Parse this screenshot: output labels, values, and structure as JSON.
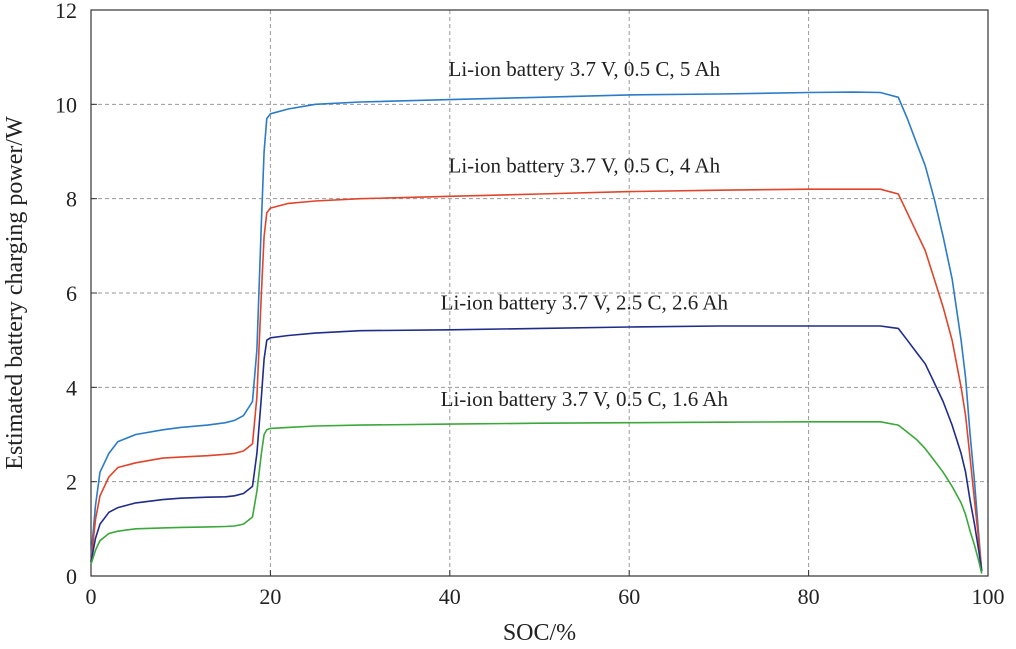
{
  "chart_data": {
    "type": "line",
    "xlabel": "SOC/%",
    "ylabel": "Estimated battery charging power/W",
    "xlim": [
      0,
      100
    ],
    "ylim": [
      0,
      12
    ],
    "xticks": [
      "0",
      "20",
      "40",
      "60",
      "80",
      "100"
    ],
    "yticks": [
      "0",
      "2",
      "4",
      "6",
      "8",
      "10",
      "12"
    ],
    "grid": true,
    "grid_style": "dashed",
    "series": [
      {
        "annotation": "Li-ion battery 3.7 V, 0.5 C, 5 Ah",
        "color": "#2b7bc8",
        "x": [
          0,
          0.5,
          1,
          2,
          3,
          5,
          8,
          10,
          13,
          15,
          16,
          17,
          18,
          18.5,
          19,
          19.3,
          19.6,
          20,
          22,
          25,
          30,
          40,
          50,
          60,
          70,
          80,
          85,
          88,
          90,
          91,
          92,
          93,
          94,
          95,
          96,
          97,
          97.5,
          98,
          98.5,
          99,
          99.3
        ],
        "y": [
          0.4,
          1.5,
          2.2,
          2.6,
          2.85,
          3.0,
          3.1,
          3.15,
          3.2,
          3.25,
          3.3,
          3.4,
          3.7,
          4.8,
          7.5,
          9.0,
          9.7,
          9.8,
          9.9,
          10.0,
          10.05,
          10.1,
          10.15,
          10.2,
          10.22,
          10.25,
          10.26,
          10.25,
          10.15,
          9.7,
          9.2,
          8.7,
          8.0,
          7.2,
          6.3,
          5.0,
          4.2,
          3.0,
          2.0,
          0.8,
          0.1
        ]
      },
      {
        "annotation": "Li-ion battery 3.7 V, 0.5 C, 4 Ah",
        "color": "#e0452b",
        "x": [
          0,
          0.5,
          1,
          2,
          3,
          5,
          8,
          10,
          13,
          15,
          16,
          17,
          18,
          18.5,
          19,
          19.3,
          19.6,
          20,
          22,
          25,
          30,
          40,
          50,
          60,
          70,
          80,
          85,
          88,
          90,
          91,
          92,
          93,
          94,
          95,
          96,
          97,
          97.5,
          98,
          98.5,
          99,
          99.3
        ],
        "y": [
          0.3,
          1.2,
          1.7,
          2.1,
          2.3,
          2.4,
          2.5,
          2.52,
          2.55,
          2.58,
          2.6,
          2.65,
          2.8,
          3.8,
          6.0,
          7.2,
          7.7,
          7.8,
          7.9,
          7.95,
          8.0,
          8.05,
          8.1,
          8.15,
          8.18,
          8.2,
          8.2,
          8.2,
          8.1,
          7.7,
          7.3,
          6.9,
          6.3,
          5.7,
          5.0,
          4.0,
          3.4,
          2.5,
          1.6,
          0.7,
          0.1
        ]
      },
      {
        "annotation": "Li-ion battery 3.7 V, 2.5 C, 2.6 Ah",
        "color": "#1f2d8a",
        "x": [
          0,
          0.5,
          1,
          2,
          3,
          5,
          8,
          10,
          13,
          15,
          16,
          17,
          18,
          18.5,
          19,
          19.3,
          19.6,
          20,
          22,
          25,
          30,
          40,
          50,
          60,
          70,
          80,
          85,
          88,
          90,
          91,
          92,
          93,
          94,
          95,
          96,
          97,
          97.5,
          98,
          98.5,
          99,
          99.3
        ],
        "y": [
          0.3,
          0.8,
          1.1,
          1.35,
          1.45,
          1.55,
          1.62,
          1.65,
          1.67,
          1.68,
          1.7,
          1.75,
          1.9,
          2.6,
          3.8,
          4.6,
          5.0,
          5.05,
          5.1,
          5.15,
          5.2,
          5.22,
          5.25,
          5.28,
          5.3,
          5.3,
          5.3,
          5.3,
          5.25,
          5.0,
          4.75,
          4.5,
          4.1,
          3.7,
          3.2,
          2.6,
          2.2,
          1.6,
          1.1,
          0.5,
          0.1
        ]
      },
      {
        "annotation": "Li-ion battery 3.7 V, 0.5 C, 1.6 Ah",
        "color": "#3aa83a",
        "x": [
          0,
          0.5,
          1,
          2,
          3,
          5,
          8,
          10,
          13,
          15,
          16,
          17,
          18,
          18.5,
          19,
          19.3,
          19.6,
          20,
          22,
          25,
          30,
          40,
          50,
          60,
          70,
          80,
          85,
          88,
          90,
          91,
          92,
          93,
          94,
          95,
          96,
          97,
          97.5,
          98,
          98.5,
          99,
          99.3
        ],
        "y": [
          0.25,
          0.55,
          0.75,
          0.9,
          0.95,
          1.0,
          1.02,
          1.03,
          1.04,
          1.05,
          1.06,
          1.1,
          1.25,
          1.8,
          2.6,
          3.0,
          3.1,
          3.13,
          3.15,
          3.18,
          3.2,
          3.22,
          3.24,
          3.25,
          3.26,
          3.27,
          3.27,
          3.27,
          3.2,
          3.05,
          2.9,
          2.7,
          2.45,
          2.2,
          1.9,
          1.55,
          1.3,
          0.95,
          0.65,
          0.3,
          0.05
        ]
      }
    ]
  }
}
